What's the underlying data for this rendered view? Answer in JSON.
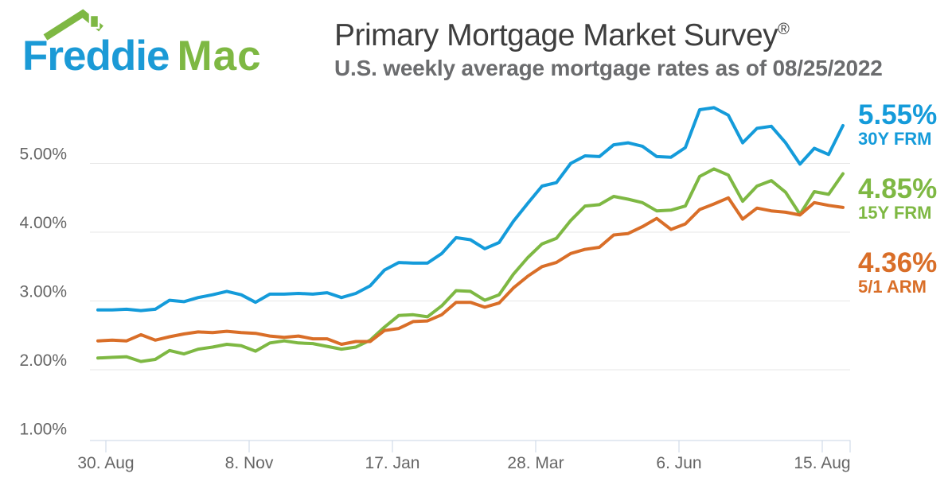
{
  "logo": {
    "word1": "Freddie",
    "word2": "Mac",
    "word1_color": "#1b9ad6",
    "word2_color": "#7eb843",
    "roof_color": "#7eb843"
  },
  "header": {
    "title": "Primary Mortgage Market Survey",
    "registered": "®",
    "subtitle": "U.S. weekly average mortgage rates as of 08/25/2022",
    "title_color": "#3e3e3e",
    "subtitle_color": "#6b6c6e"
  },
  "chart_data": {
    "type": "line",
    "title": "Primary Mortgage Market Survey®",
    "subtitle": "U.S. weekly average mortgage rates as of 08/25/2022",
    "x_unit": "week",
    "x_tick_labels": [
      "30. Aug",
      "8. Nov",
      "17. Jan",
      "28. Mar",
      "6. Jun",
      "15. Aug"
    ],
    "y_tick_labels": [
      "1.00%",
      "2.00%",
      "3.00%",
      "4.00%",
      "5.00%"
    ],
    "y_tick_values": [
      1.0,
      2.0,
      3.0,
      4.0,
      5.0
    ],
    "ylim": [
      1.0,
      5.95
    ],
    "grid": true,
    "legend_position": "right",
    "axis_text_color": "#666666",
    "grid_color": "#e7e7e7",
    "axis_line_color": "#c9d4e4",
    "series": [
      {
        "name": "30Y FRM",
        "current_value_label": "5.55%",
        "color": "#149bda",
        "values": [
          2.87,
          2.87,
          2.88,
          2.86,
          2.88,
          3.01,
          2.99,
          3.05,
          3.09,
          3.14,
          3.09,
          2.98,
          3.1,
          3.1,
          3.11,
          3.1,
          3.12,
          3.05,
          3.11,
          3.22,
          3.45,
          3.56,
          3.55,
          3.55,
          3.69,
          3.92,
          3.89,
          3.76,
          3.85,
          4.16,
          4.42,
          4.67,
          4.72,
          5.0,
          5.11,
          5.1,
          5.27,
          5.3,
          5.25,
          5.1,
          5.09,
          5.23,
          5.78,
          5.81,
          5.7,
          5.3,
          5.51,
          5.54,
          5.3,
          4.99,
          5.22,
          5.13,
          5.55
        ]
      },
      {
        "name": "15Y FRM",
        "current_value_label": "4.85%",
        "color": "#7eb843",
        "values": [
          2.17,
          2.18,
          2.19,
          2.12,
          2.15,
          2.28,
          2.23,
          2.3,
          2.33,
          2.37,
          2.35,
          2.27,
          2.39,
          2.42,
          2.39,
          2.38,
          2.34,
          2.3,
          2.33,
          2.43,
          2.62,
          2.79,
          2.8,
          2.77,
          2.93,
          3.15,
          3.14,
          3.01,
          3.09,
          3.39,
          3.63,
          3.83,
          3.91,
          4.17,
          4.38,
          4.4,
          4.52,
          4.48,
          4.43,
          4.31,
          4.32,
          4.38,
          4.81,
          4.92,
          4.83,
          4.45,
          4.67,
          4.75,
          4.58,
          4.26,
          4.59,
          4.55,
          4.85
        ]
      },
      {
        "name": "5/1 ARM",
        "current_value_label": "4.36%",
        "color": "#d96e28",
        "values": [
          2.42,
          2.43,
          2.42,
          2.51,
          2.43,
          2.48,
          2.52,
          2.55,
          2.54,
          2.56,
          2.54,
          2.53,
          2.49,
          2.47,
          2.49,
          2.45,
          2.45,
          2.37,
          2.41,
          2.41,
          2.57,
          2.6,
          2.7,
          2.71,
          2.8,
          2.98,
          2.98,
          2.91,
          2.97,
          3.19,
          3.36,
          3.5,
          3.56,
          3.69,
          3.75,
          3.78,
          3.96,
          3.98,
          4.08,
          4.2,
          4.04,
          4.12,
          4.33,
          4.41,
          4.5,
          4.19,
          4.35,
          4.31,
          4.29,
          4.25,
          4.43,
          4.39,
          4.36
        ]
      }
    ]
  }
}
